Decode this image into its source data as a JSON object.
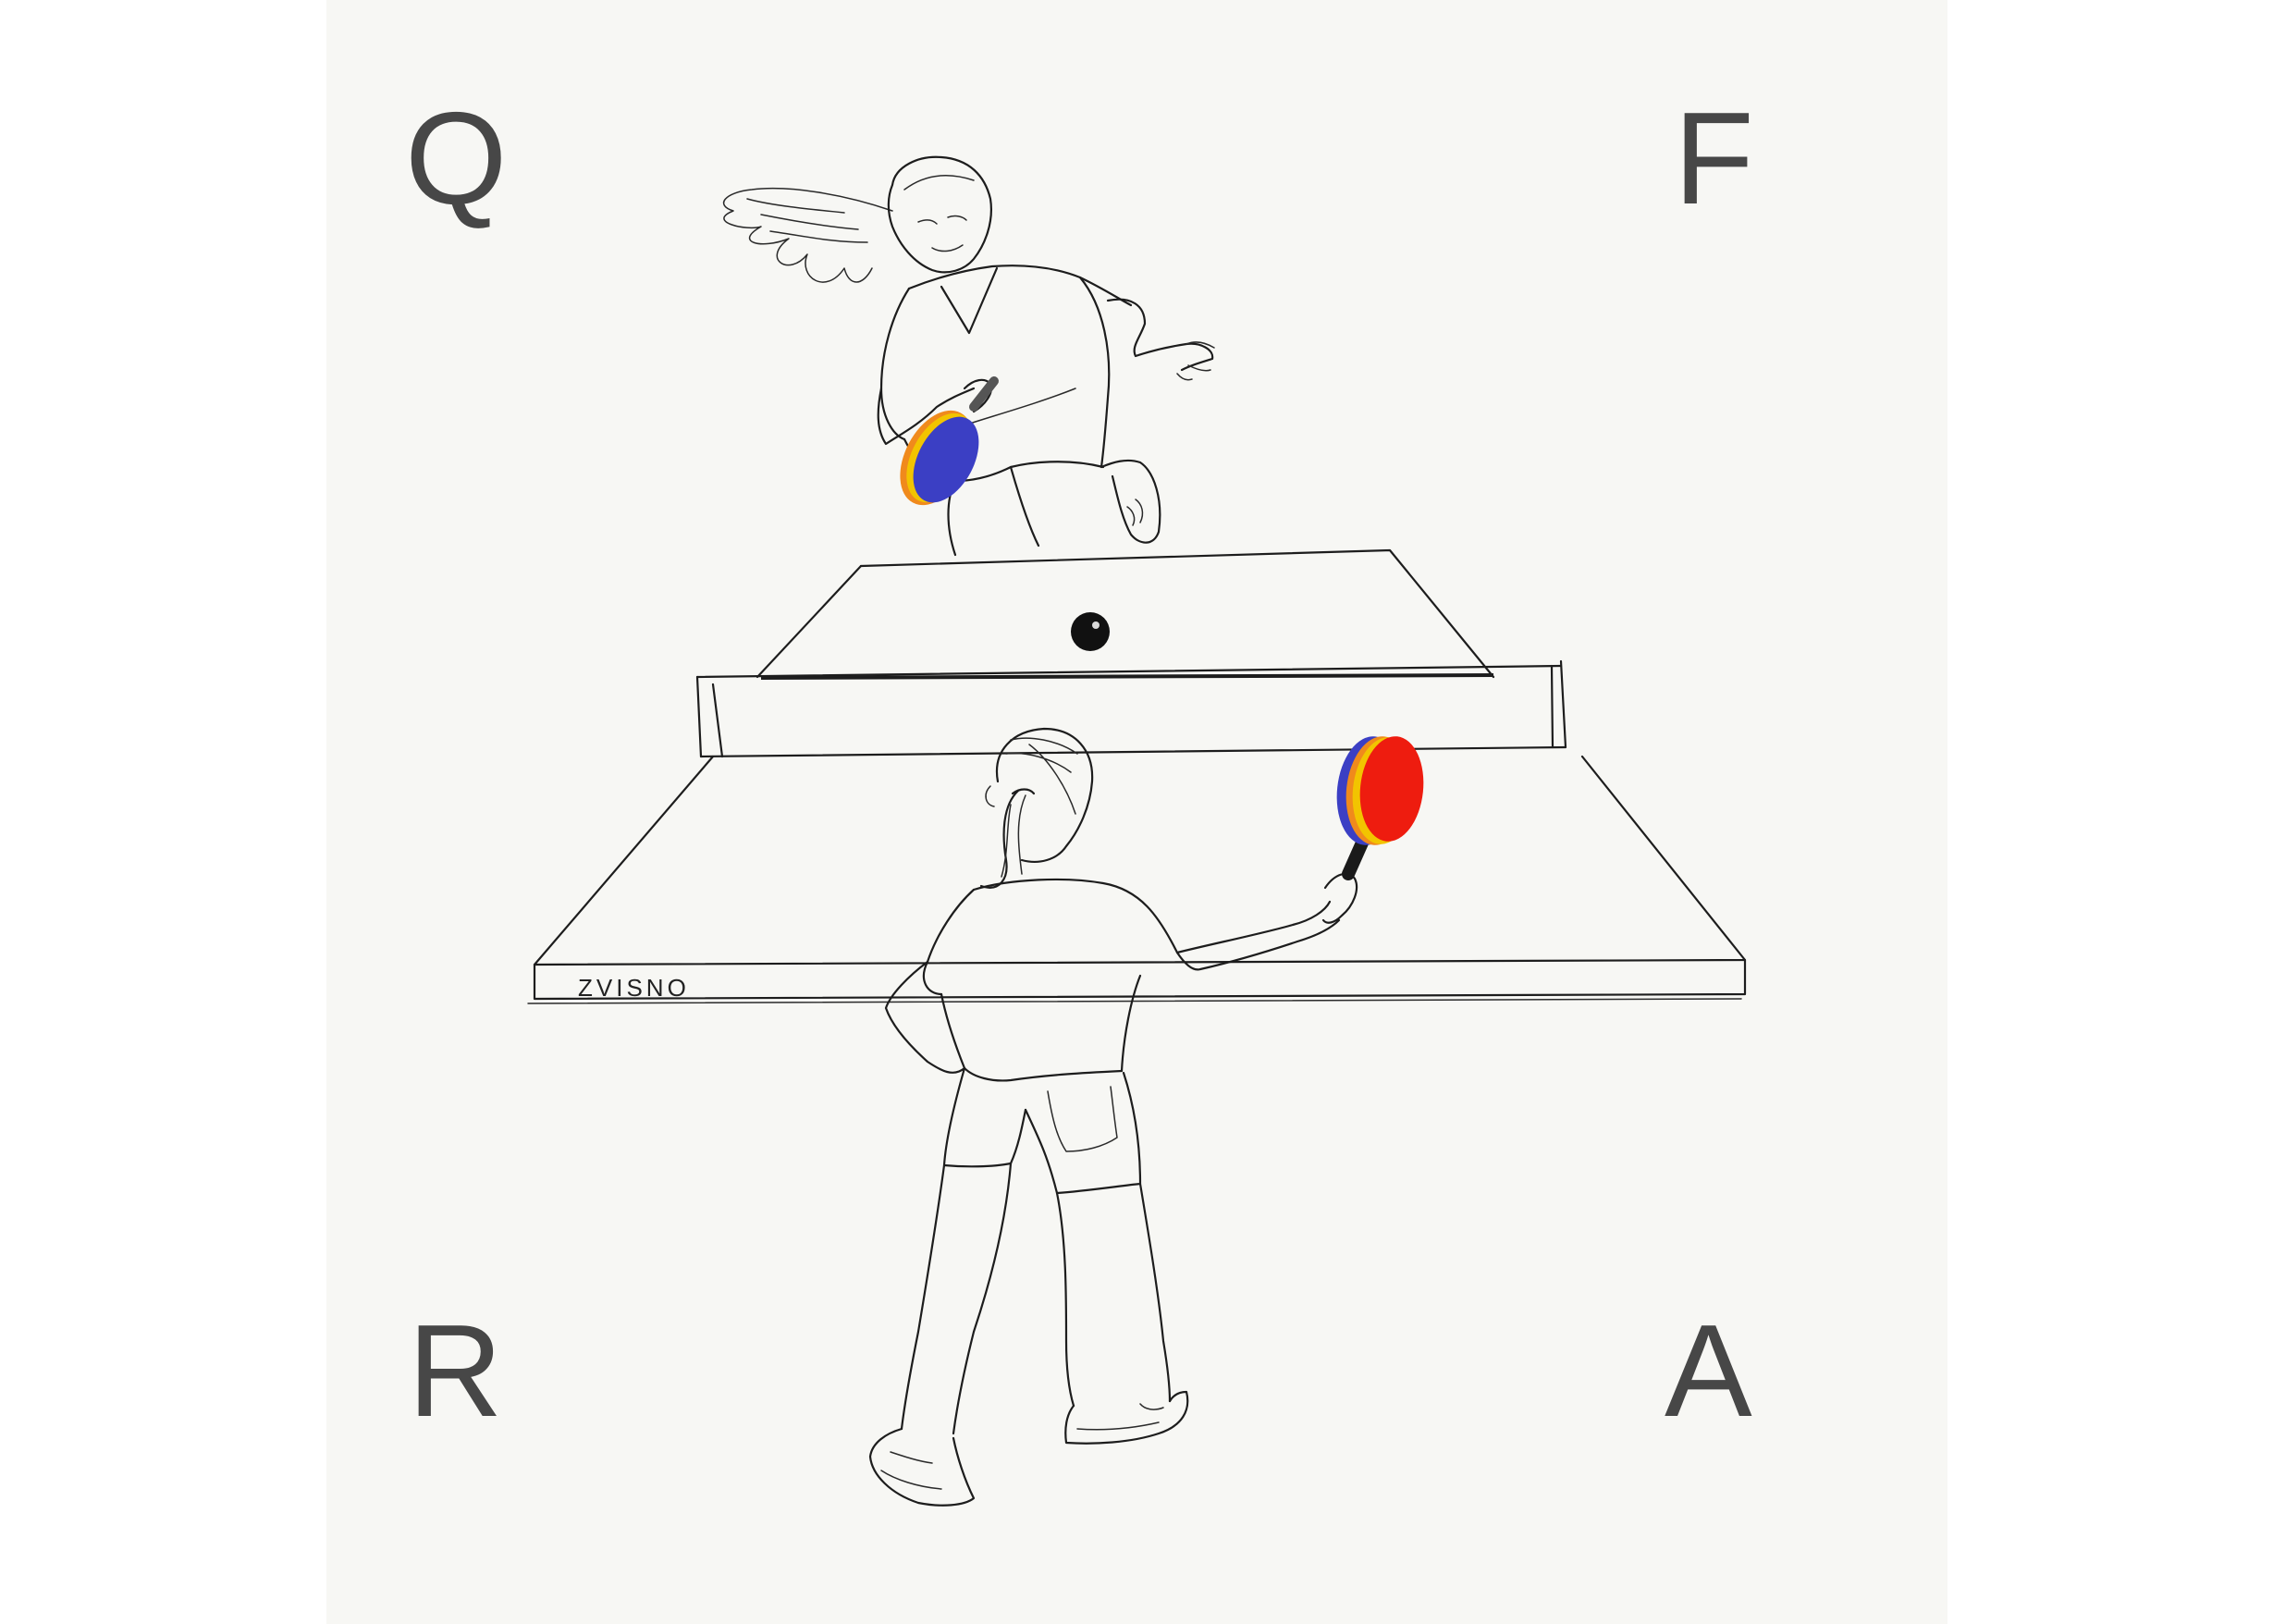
{
  "corners": {
    "top_left": "Q",
    "top_right": "F",
    "bottom_left": "R",
    "bottom_right": "A"
  },
  "table": {
    "brand_label": "ZVISNO"
  },
  "colors": {
    "background": "#f7f7f4",
    "letters": "#474747",
    "paddle_far": "#3b3fc4",
    "paddle_near": "#ee1c0f",
    "paddle_edge_yellow": "#f2c400",
    "paddle_edge_orange": "#f08a1c",
    "ball": "#111111"
  }
}
